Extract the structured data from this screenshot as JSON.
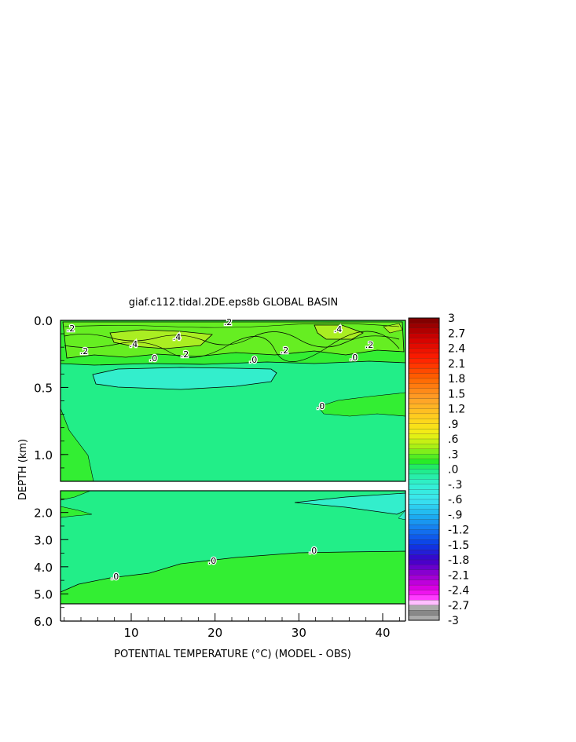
{
  "chart_data": {
    "type": "heatmap",
    "title": "giaf.c112.tidal.2DE.eps8b GLOBAL BASIN",
    "xlabel": "POTENTIAL TEMPERATURE (°C) (MODEL - OBS)",
    "ylabel": "DEPTH (km)",
    "x_ticks": [
      10,
      20,
      30,
      40
    ],
    "upper_panel": {
      "ylim": [
        0.0,
        1.2
      ],
      "y_ticks": [
        "0.0",
        "0.5",
        "1.0"
      ]
    },
    "lower_panel": {
      "ylim": [
        1.2,
        6.0
      ],
      "y_ticks": [
        "2.0",
        "3.0",
        "4.0",
        "5.0",
        "6.0"
      ]
    },
    "contour_labels": [
      ".2",
      ".4",
      ".2",
      ".4",
      ".2",
      ".2",
      ".2",
      ".4",
      ".2",
      ".0",
      ".0",
      ".0",
      ".0",
      ".0",
      ".0",
      ".0"
    ],
    "colorbar": {
      "ticks": [
        "3",
        "2.7",
        "2.4",
        "2.1",
        "1.8",
        "1.5",
        "1.2",
        ".9",
        ".6",
        ".3",
        ".0",
        "-.3",
        "-.6",
        "-.9",
        "-1.2",
        "-1.5",
        "-1.8",
        "-2.1",
        "-2.4",
        "-2.7",
        "-3"
      ],
      "range": [
        -3,
        3
      ]
    },
    "colors": {
      "field_main": "#22ee88",
      "field_green": "#33ee33",
      "field_light": "#66ee22",
      "field_yellowgreen": "#aaee22",
      "field_negative": "#33eecc",
      "missing": "#ffffff"
    }
  }
}
